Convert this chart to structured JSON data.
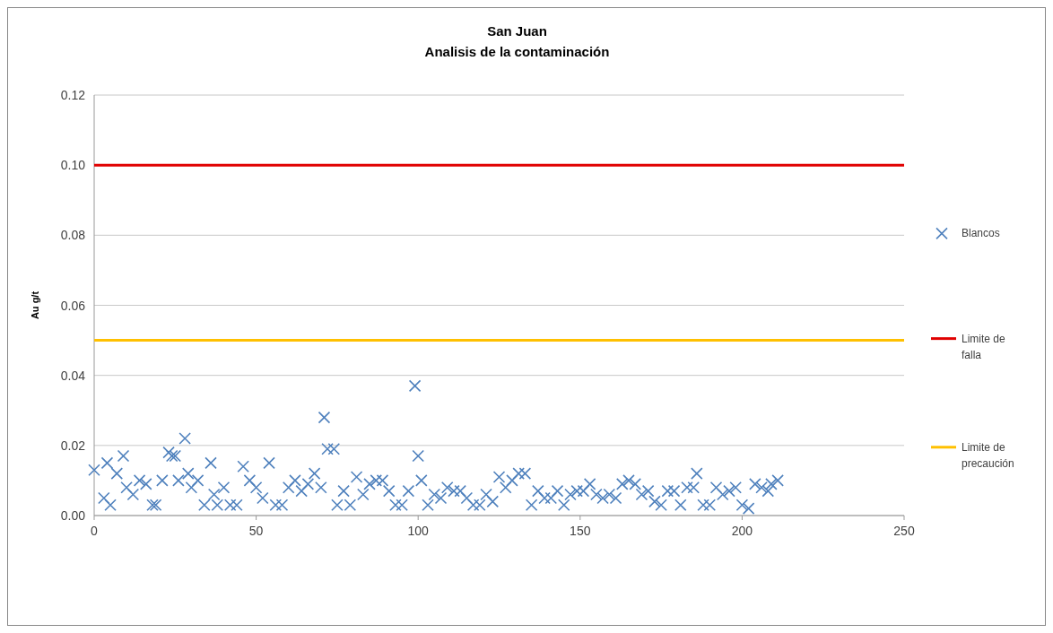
{
  "chart_data": {
    "type": "scatter",
    "title": "San Juan",
    "subtitle": "Analisis de la contaminación",
    "ylabel": "Au g/t",
    "xlim": [
      0,
      250
    ],
    "xticks": [
      0,
      50,
      100,
      150,
      200,
      250
    ],
    "ylim": [
      0,
      0.12
    ],
    "yticks": [
      {
        "value": 0,
        "label": "0.00"
      },
      {
        "value": 0.02,
        "label": "0.02"
      },
      {
        "value": 0.04,
        "label": "0.04"
      },
      {
        "value": 0.06,
        "label": "0.06"
      },
      {
        "value": 0.08,
        "label": "0.08"
      },
      {
        "value": 0.1,
        "label": "0.10"
      },
      {
        "value": 0.12,
        "label": "0.12"
      }
    ],
    "grid": "y",
    "legend": "right",
    "marker": "cross",
    "series": [
      {
        "name": "Blancos",
        "color": "#4f81bd",
        "x": [
          0,
          3,
          4,
          5,
          7,
          9,
          10,
          12,
          14,
          16,
          18,
          19,
          21,
          23,
          24,
          25,
          26,
          28,
          29,
          30,
          32,
          34,
          36,
          37,
          38,
          40,
          42,
          44,
          46,
          48,
          50,
          52,
          54,
          56,
          58,
          60,
          62,
          64,
          66,
          68,
          70,
          71,
          72,
          74,
          75,
          77,
          79,
          81,
          83,
          85,
          87,
          89,
          91,
          93,
          95,
          97,
          99,
          100,
          101,
          103,
          105,
          107,
          109,
          111,
          113,
          115,
          117,
          119,
          121,
          123,
          125,
          127,
          129,
          131,
          133,
          135,
          137,
          139,
          141,
          143,
          145,
          147,
          149,
          151,
          153,
          155,
          157,
          159,
          161,
          163,
          165,
          167,
          169,
          171,
          173,
          175,
          177,
          179,
          181,
          183,
          185,
          186,
          188,
          190,
          192,
          194,
          196,
          198,
          200,
          202,
          204,
          206,
          208,
          209,
          211
        ],
        "values": [
          0.013,
          0.005,
          0.015,
          0.003,
          0.012,
          0.017,
          0.008,
          0.006,
          0.01,
          0.009,
          0.003,
          0.003,
          0.01,
          0.018,
          0.017,
          0.017,
          0.01,
          0.022,
          0.012,
          0.008,
          0.01,
          0.003,
          0.015,
          0.006,
          0.003,
          0.008,
          0.003,
          0.003,
          0.014,
          0.01,
          0.008,
          0.005,
          0.015,
          0.003,
          0.003,
          0.008,
          0.01,
          0.007,
          0.009,
          0.012,
          0.008,
          0.028,
          0.019,
          0.019,
          0.003,
          0.007,
          0.003,
          0.011,
          0.006,
          0.009,
          0.01,
          0.01,
          0.007,
          0.003,
          0.003,
          0.007,
          0.037,
          0.017,
          0.01,
          0.003,
          0.006,
          0.005,
          0.008,
          0.007,
          0.007,
          0.005,
          0.003,
          0.003,
          0.006,
          0.004,
          0.011,
          0.008,
          0.01,
          0.012,
          0.012,
          0.003,
          0.007,
          0.005,
          0.005,
          0.007,
          0.003,
          0.006,
          0.007,
          0.007,
          0.009,
          0.006,
          0.005,
          0.006,
          0.005,
          0.009,
          0.01,
          0.009,
          0.006,
          0.007,
          0.004,
          0.003,
          0.007,
          0.007,
          0.003,
          0.008,
          0.008,
          0.012,
          0.003,
          0.003,
          0.008,
          0.006,
          0.007,
          0.008,
          0.003,
          0.002,
          0.009,
          0.008,
          0.007,
          0.009,
          0.01
        ]
      }
    ],
    "ref_lines": [
      {
        "axis": "y",
        "value": 0.1,
        "label": "Limite de falla",
        "color": "#e00000"
      },
      {
        "axis": "y",
        "value": 0.05,
        "label": "Limite de precaución",
        "color": "#ffc000"
      }
    ]
  }
}
